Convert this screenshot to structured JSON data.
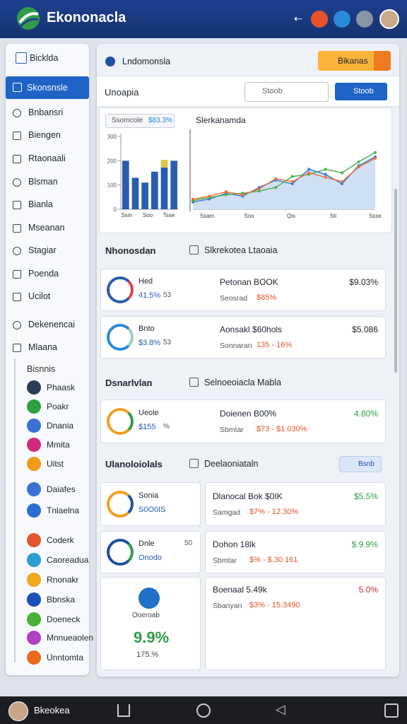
{
  "header": {
    "title": "Ekononacla"
  },
  "sidebar": {
    "top": "Bicklda",
    "active": "Skonsnsle",
    "items": [
      "Bnbansri",
      "Biengen",
      "Rtaonaali",
      "Blsman",
      "Bianla",
      "Mseanan",
      "Stagiar",
      "Poenda",
      "Ucilot",
      "Dekenencai",
      "Mlaana"
    ],
    "section": "Bisnnis",
    "sub_items": [
      "Phaask",
      "Poakr",
      "Dnania",
      "Mmita",
      "Uitst",
      "Daiafes",
      "Tnlaelna",
      "Coderk",
      "Caoreadua",
      "Rnonakr",
      "Bbnska",
      "Doeneck",
      "Mnnueaolen",
      "Unntomta"
    ]
  },
  "main": {
    "tab": "Lndomonsla",
    "button": "Bikanas",
    "search_label": "Unoapia",
    "search_placeholder": "Stoob",
    "search_button": "Stoob",
    "chart": {
      "legend_label": "Ssomcole",
      "legend_value": "$83.3%",
      "title": "Slerkanamda",
      "ylim": [
        0,
        300
      ],
      "yticks": [
        0,
        100,
        200,
        300
      ],
      "bar_labels": [
        "Ssin",
        "Soo",
        "Tsse"
      ],
      "bar_series": [
        {
          "color": "#2a5db0",
          "values": [
            200,
            130,
            110,
            155,
            172,
            200
          ]
        },
        {
          "color": "#d9c84a",
          "values": [
            0,
            0,
            0,
            0,
            32,
            0
          ]
        }
      ],
      "line_x_labels": [
        "Ssam",
        "Soo",
        "Qis",
        "Sti",
        "Ssse"
      ],
      "line_ylim": [
        0,
        100
      ],
      "line_series": [
        {
          "color": "#3a7bd5",
          "values": [
            10,
            14,
            22,
            18,
            30,
            40,
            35,
            55,
            48,
            35,
            60,
            72
          ]
        },
        {
          "color": "#4caf50",
          "values": [
            12,
            16,
            20,
            22,
            25,
            30,
            45,
            48,
            55,
            50,
            65,
            78
          ]
        },
        {
          "color": "#e8743b",
          "values": [
            14,
            18,
            24,
            20,
            28,
            42,
            38,
            50,
            44,
            38,
            58,
            70
          ]
        }
      ]
    },
    "sections": [
      {
        "title": "Nhonosdan",
        "subtitle": "Slkrekotea Ltaoaia",
        "cards": [
          {
            "left_title": "Hed",
            "left_value": "41.5%",
            "left_note": "53",
            "right_title": "Petonan BOOK",
            "right_label": "Seosrad",
            "right_value": "$85%",
            "amount": "$9.03%"
          },
          {
            "left_title": "Bnto",
            "left_value": "$3.8%",
            "left_note": "53",
            "right_title": "Aonsakl $60hols",
            "right_label": "Sonnaran",
            "right_value": "135 - 16%",
            "amount": "$5.086"
          }
        ]
      },
      {
        "title": "Dsnarlvlan",
        "subtitle": "Selnoeoiacla Mabla",
        "cards": [
          {
            "left_title": "Ueole",
            "left_value": "$155",
            "left_note": "%",
            "right_title": "Doienen B00%",
            "right_label": "Sbmtar",
            "right_value": "$73 - $1.030%",
            "amount": "4.80%"
          }
        ]
      },
      {
        "title": "Ulanoloiolals",
        "subtitle": "Deelaoniataln",
        "button": "Bsnb",
        "cards": [
          {
            "left_title": "Sonia",
            "left_value": "S0O0IS",
            "left_note": "",
            "right_title": "Dlanocal Bok $0IK",
            "right_label": "Samgad",
            "right_value": "$7% - 12.30%",
            "amount": "$5.5%"
          },
          {
            "left_title": "Dnle",
            "left_value": "Onodo",
            "left_note": "50",
            "right_title": "Dohon 18lk",
            "right_label": "Sbmtar",
            "right_value": "$% - $.30 161",
            "amount": "$.9.9%"
          },
          {
            "left_title": "Ooeroab",
            "left_value": "9.9%",
            "left_note": "175.%",
            "right_title": "Boenaal 5.49k",
            "right_label": "Sbanyan",
            "right_value": "$3% - 15.3490",
            "amount": "5.0%"
          }
        ]
      }
    ]
  },
  "footer": {
    "user": "Bkeokea"
  }
}
